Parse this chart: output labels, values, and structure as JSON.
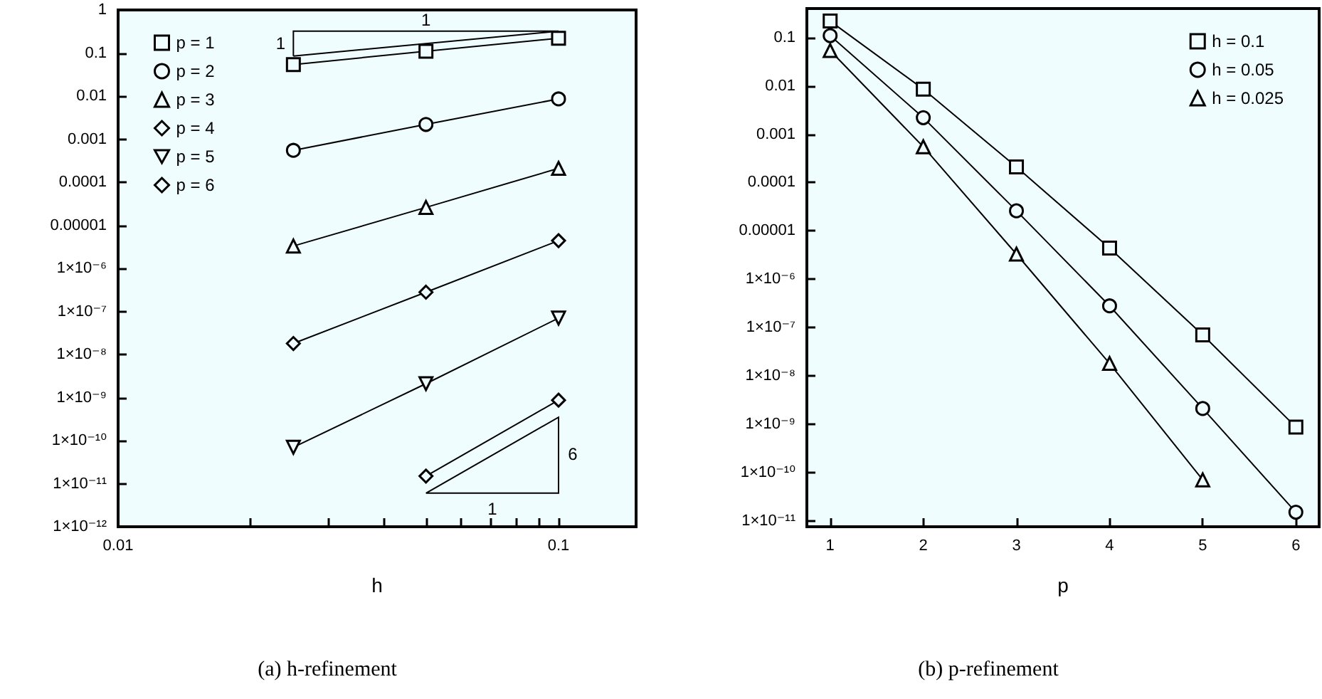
{
  "chart_data": [
    {
      "type": "line",
      "title": "(a) h-refinement",
      "xlabel": "h",
      "log": "xy",
      "grid": false,
      "legend": "top left",
      "xlim": [
        0.01,
        0.15
      ],
      "ylim": [
        1e-12,
        1
      ],
      "xticks": [
        0.01,
        {
          "value": 0.02,
          "label": null
        },
        {
          "value": 0.03,
          "label": null
        },
        {
          "value": 0.04,
          "label": null
        },
        {
          "value": 0.05,
          "label": null
        },
        {
          "value": 0.06,
          "label": null
        },
        {
          "value": 0.07,
          "label": null
        },
        {
          "value": 0.08,
          "label": null
        },
        {
          "value": 0.09,
          "label": null
        },
        0.1
      ],
      "yticks": [
        {
          "value": 1e-12,
          "label": "1×10⁻¹²"
        },
        {
          "value": 1e-11,
          "label": "1×10⁻¹¹"
        },
        {
          "value": 1e-10,
          "label": "1×10⁻¹⁰"
        },
        {
          "value": 1e-09,
          "label": "1×10⁻⁹"
        },
        {
          "value": 1e-08,
          "label": "1×10⁻⁸"
        },
        {
          "value": 1e-07,
          "label": "1×10⁻⁷"
        },
        {
          "value": 1e-06,
          "label": "1×10⁻⁶"
        },
        {
          "value": 1e-05,
          "label": "0.00001"
        },
        0.0001,
        0.001,
        0.01,
        0.1,
        1
      ],
      "series": [
        {
          "name": "p = 1",
          "color": "#000000",
          "marker": "square",
          "x": [
            0.025,
            0.05,
            0.1
          ],
          "values": [
            0.054,
            0.11,
            0.22
          ]
        },
        {
          "name": "p = 2",
          "color": "#000000",
          "marker": "circle",
          "x": [
            0.025,
            0.05,
            0.1
          ],
          "values": [
            0.00055,
            0.0022,
            0.0086
          ]
        },
        {
          "name": "p = 3",
          "color": "#000000",
          "marker": "triangle",
          "x": [
            0.025,
            0.05,
            0.1
          ],
          "values": [
            3.3e-06,
            2.6e-05,
            0.00021
          ]
        },
        {
          "name": "p = 4",
          "color": "#000000",
          "marker": "diamond",
          "x": [
            0.025,
            0.05,
            0.1
          ],
          "values": [
            1.8e-08,
            2.8e-07,
            4.4e-06
          ]
        },
        {
          "name": "p = 5",
          "color": "#000000",
          "marker": "triangle-down",
          "x": [
            0.025,
            0.05,
            0.1
          ],
          "values": [
            7e-11,
            2.1e-09,
            7e-08
          ]
        },
        {
          "name": "p = 6",
          "color": "#000000",
          "marker": "diamond",
          "x": [
            0.05,
            0.1
          ],
          "values": [
            1.5e-11,
            8.7e-10
          ]
        }
      ],
      "annotations": [
        "1",
        "1",
        "6",
        "1"
      ]
    },
    {
      "type": "line",
      "title": "(b) p-refinement",
      "xlabel": "p",
      "log": "y",
      "grid": false,
      "legend": "top right",
      "xlim": [
        0.75,
        6.25
      ],
      "ylim": [
        7.5e-12,
        0.4
      ],
      "xticks": [
        1,
        2,
        3,
        4,
        5,
        6
      ],
      "yticks": [
        {
          "value": 1e-11,
          "label": "1×10⁻¹¹"
        },
        {
          "value": 1e-10,
          "label": "1×10⁻¹⁰"
        },
        {
          "value": 1e-09,
          "label": "1×10⁻⁹"
        },
        {
          "value": 1e-08,
          "label": "1×10⁻⁸"
        },
        {
          "value": 1e-07,
          "label": "1×10⁻⁷"
        },
        {
          "value": 1e-06,
          "label": "1×10⁻⁶"
        },
        {
          "value": 1e-05,
          "label": "0.00001"
        },
        0.0001,
        0.001,
        0.01,
        0.1
      ],
      "series": [
        {
          "name": "h = 0.1",
          "color": "#000000",
          "marker": "square",
          "x": [
            1,
            2,
            3,
            4,
            5,
            6
          ],
          "values": [
            0.22,
            0.0086,
            0.00021,
            4.4e-06,
            7e-08,
            8.7e-10
          ]
        },
        {
          "name": "h = 0.05",
          "color": "#000000",
          "marker": "circle",
          "x": [
            1,
            2,
            3,
            4,
            5,
            6
          ],
          "values": [
            0.11,
            0.0022,
            2.6e-05,
            2.8e-07,
            2.1e-09,
            1.5e-11
          ]
        },
        {
          "name": "h = 0.025",
          "color": "#000000",
          "marker": "triangle",
          "x": [
            1,
            2,
            3,
            4,
            5
          ],
          "values": [
            0.054,
            0.00055,
            3.3e-06,
            1.8e-08,
            7e-11
          ]
        }
      ]
    }
  ]
}
